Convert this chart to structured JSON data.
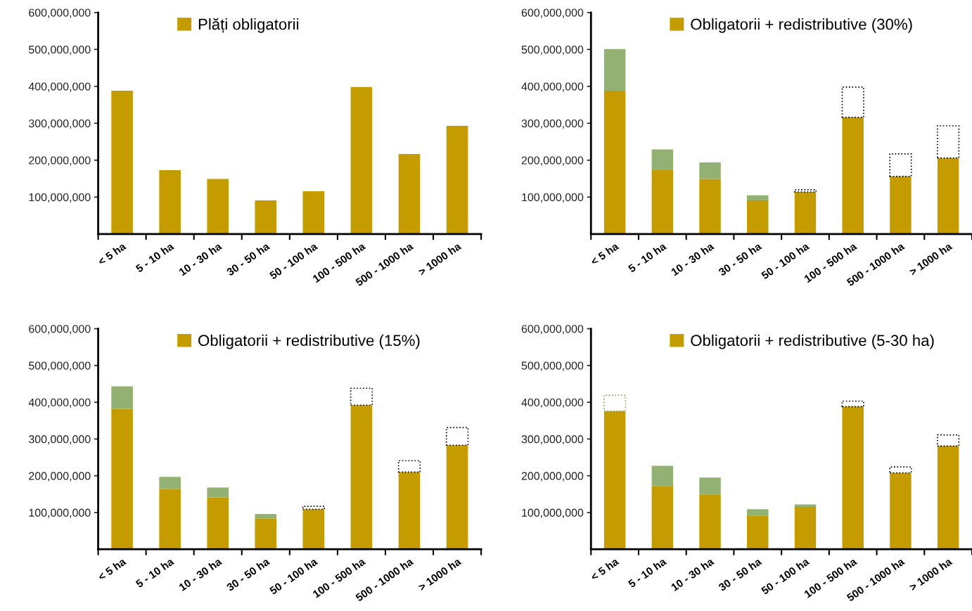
{
  "chart_data": [
    {
      "type": "bar",
      "stacked": true,
      "legend": "top",
      "categories": [
        "< 5 ha",
        "5 - 10 ha",
        "10 - 30 ha",
        "30 - 50 ha",
        "50 - 100 ha",
        "100 - 500 ha",
        "500 - 1000 ha",
        "> 1000 ha"
      ],
      "ylim": [
        0,
        600000000
      ],
      "yticks": [
        {
          "value": 100000000,
          "label": "100,000,000"
        },
        {
          "value": 200000000,
          "label": "200,000,000"
        },
        {
          "value": 300000000,
          "label": "300,000,000"
        },
        {
          "value": 400000000,
          "label": "400,000,000"
        },
        {
          "value": 500000000,
          "label": "500,000,000"
        },
        {
          "value": 600000000,
          "label": "600,000,000"
        }
      ],
      "series": [
        {
          "name": "Plăți obligatorii",
          "color": "#c49c00",
          "values": [
            388000000,
            173000000,
            149000000,
            91000000,
            116000000,
            398000000,
            217000000,
            293000000
          ]
        }
      ]
    },
    {
      "type": "bar",
      "stacked": true,
      "legend": "top",
      "categories": [
        "< 5 ha",
        "5 - 10 ha",
        "10 - 30 ha",
        "30 - 50 ha",
        "50 - 100 ha",
        "100 - 500 ha",
        "500 - 1000 ha",
        "> 1000 ha"
      ],
      "ylim": [
        0,
        600000000
      ],
      "yticks": [
        {
          "value": 100000000,
          "label": "100,000,000"
        },
        {
          "value": 200000000,
          "label": "200,000,000"
        },
        {
          "value": 300000000,
          "label": "300,000,000"
        },
        {
          "value": 400000000,
          "label": "400,000,000"
        },
        {
          "value": 500000000,
          "label": "500,000,000"
        },
        {
          "value": 600000000,
          "label": "600,000,000"
        }
      ],
      "series": [
        {
          "name": "Obligatorii + redistributive (30%)",
          "color": "#c49c00",
          "values": [
            388000000,
            173000000,
            149000000,
            91000000,
            114000000,
            316000000,
            156000000,
            206000000
          ]
        },
        {
          "color": "#92b173",
          "values": [
            113000000,
            56000000,
            45000000,
            14000000,
            null,
            null,
            null,
            null
          ]
        },
        {
          "color": "#000000",
          "line_style": "dotted",
          "values": [
            null,
            null,
            null,
            null,
            6000000,
            82000000,
            61000000,
            87000000
          ]
        }
      ]
    },
    {
      "type": "bar",
      "stacked": true,
      "legend": "top",
      "categories": [
        "< 5 ha",
        "5 - 10 ha",
        "10 - 30 ha",
        "30 - 50 ha",
        "50 - 100 ha",
        "100 - 500 ha",
        "500 - 1000 ha",
        "> 1000 ha"
      ],
      "ylim": [
        0,
        600000000
      ],
      "yticks": [
        {
          "value": 100000000,
          "label": "100,000,000"
        },
        {
          "value": 200000000,
          "label": "200,000,000"
        },
        {
          "value": 300000000,
          "label": "300,000,000"
        },
        {
          "value": 400000000,
          "label": "400,000,000"
        },
        {
          "value": 500000000,
          "label": "500,000,000"
        },
        {
          "value": 600000000,
          "label": "600,000,000"
        }
      ],
      "series": [
        {
          "name": "Obligatorii + redistributive (15%)",
          "color": "#c49c00",
          "values": [
            382000000,
            164000000,
            141000000,
            84000000,
            109000000,
            392000000,
            210000000,
            283000000
          ]
        },
        {
          "color": "#92b173",
          "values": [
            61000000,
            33000000,
            27000000,
            12000000,
            null,
            null,
            null,
            null
          ]
        },
        {
          "color": "#000000",
          "line_style": "dotted",
          "values": [
            null,
            null,
            null,
            null,
            8000000,
            46000000,
            31000000,
            48000000
          ]
        }
      ]
    },
    {
      "type": "bar",
      "stacked": true,
      "legend": "top",
      "categories": [
        "< 5 ha",
        "5 - 10 ha",
        "10 - 30 ha",
        "30 - 50 ha",
        "50 - 100 ha",
        "100 - 500 ha",
        "500 - 1000 ha",
        "> 1000 ha"
      ],
      "ylim": [
        0,
        600000000
      ],
      "yticks": [
        {
          "value": 100000000,
          "label": "100,000,000"
        },
        {
          "value": 200000000,
          "label": "200,000,000"
        },
        {
          "value": 300000000,
          "label": "300,000,000"
        },
        {
          "value": 400000000,
          "label": "400,000,000"
        },
        {
          "value": 500000000,
          "label": "500,000,000"
        },
        {
          "value": 600000000,
          "label": "600,000,000"
        }
      ],
      "series": [
        {
          "name": "Obligatorii + redistributive (5-30 ha)",
          "color": "#c49c00",
          "values": [
            376000000,
            172000000,
            149000000,
            92000000,
            115000000,
            388000000,
            208000000,
            281000000
          ]
        },
        {
          "color": "#92b173",
          "values": [
            null,
            55000000,
            46000000,
            17000000,
            7000000,
            null,
            null,
            null
          ]
        },
        {
          "color": "#7fa85a",
          "line_style": "dotted",
          "values": [
            43000000,
            null,
            null,
            null,
            null,
            null,
            null,
            null
          ]
        },
        {
          "color": "#000000",
          "line_style": "dotted",
          "values": [
            null,
            null,
            null,
            null,
            null,
            15000000,
            16000000,
            30000000
          ]
        }
      ]
    }
  ]
}
